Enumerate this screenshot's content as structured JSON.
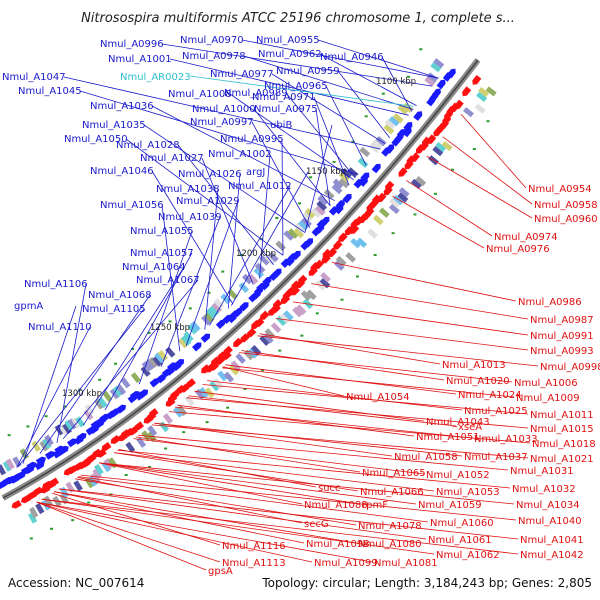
{
  "title": "Nitrosospira multiformis ATCC 25196 chromosome 1, complete s...",
  "footer": {
    "accession": "Accession: NC_007614",
    "info": "Topology: circular; Length: 3,184,243 bp; Genes: 2,805"
  },
  "colors": {
    "background": "#ffffff",
    "backbone": "#8a8a8a",
    "forward_strand_label": "#1a1acc",
    "reverse_strand_label": "#e01010",
    "rna_label": "#33c0d0",
    "forward_arrows": "#1a1aff",
    "reverse_arrows": "#ff1010"
  },
  "ticks": [
    "1100 kbp",
    "1150 kbp",
    "1200 kbp",
    "1250 kbp",
    "1300 kbp"
  ],
  "labels_forward": [
    "Nmul_A0996",
    "Nmul_A0970",
    "Nmul_A0955",
    "Nmul_A1001",
    "Nmul_A0978",
    "Nmul_A0962",
    "Nmul_A0946",
    "Nmul_A1047",
    "Nmul_A0977",
    "Nmul_A0959",
    "Nmul_A1045",
    "Nmul_A1008",
    "Nmul_A0989",
    "Nmul_A0965",
    "Nmul_A1036",
    "Nmul_A1000",
    "Nmul_A0971",
    "Nmul_A0975",
    "Nmul_A1035",
    "Nmul_A0997",
    "ubiB",
    "Nmul_A1050",
    "Nmul_A0995",
    "Nmul_A1028",
    "Nmul_A1002",
    "Nmul_A1027",
    "argJ",
    "Nmul_A1046",
    "Nmul_A1026",
    "Nmul_A1012",
    "Nmul_A1038",
    "Nmul_A1029",
    "Nmul_A1056",
    "Nmul_A1039",
    "Nmul_A1055",
    "Nmul_A1057",
    "Nmul_A1064",
    "Nmul_A1067",
    "Nmul_A1106",
    "Nmul_A1068",
    "gpmA",
    "Nmul_A1105",
    "Nmul_A1110"
  ],
  "labels_rna": [
    "Nmul_AR0023"
  ],
  "labels_reverse": [
    "Nmul_A0954",
    "Nmul_A0958",
    "Nmul_A0960",
    "Nmul_A0974",
    "Nmul_A0976",
    "Nmul_A0986",
    "Nmul_A0987",
    "Nmul_A0991",
    "Nmul_A0993",
    "Nmul_A1013",
    "Nmul_A0998",
    "Nmul_A1020",
    "Nmul_A1006",
    "Nmul_A1024",
    "Nmul_A1009",
    "Nmul_A1054",
    "Nmul_A1025",
    "Nmul_A1011",
    "Nmul_A1043",
    "xseA",
    "Nmul_A1015",
    "Nmul_A1051",
    "Nmul_A1033",
    "Nmul_A1018",
    "Nmul_A1058",
    "Nmul_A1037",
    "Nmul_A1021",
    "Nmul_A1052",
    "Nmul_A1031",
    "Nmul_A1065",
    "Nmul_A1053",
    "Nmul_A1032",
    "succ",
    "Nmul_A1066",
    "rpmF",
    "Nmul_A1059",
    "Nmul_A1034",
    "Nmul_A1088",
    "Nmul_A1078",
    "Nmul_A1060",
    "Nmul_A1040",
    "secG",
    "Nmul_A1061",
    "Nmul_A1041",
    "Nmul_A1098",
    "Nmul_A1080",
    "Nmul_A1116",
    "Nmul_A1062",
    "Nmul_A1042",
    "Nmul_A1113",
    "Nmul_A1099",
    "Nmul_A1081",
    "gpsA"
  ]
}
